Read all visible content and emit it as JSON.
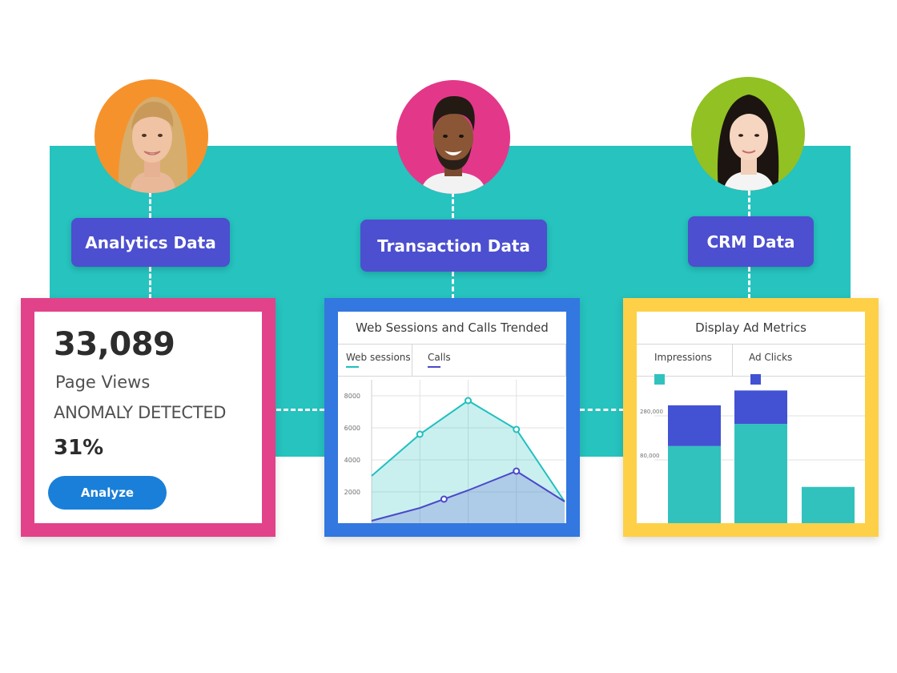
{
  "categories": {
    "analytics": "Analytics Data",
    "transaction": "Transaction Data",
    "crm": "CRM Data"
  },
  "analytics_card": {
    "value": "33,089",
    "metric": "Page Views",
    "alert": "ANOMALY DETECTED",
    "change": "31%",
    "button": "Analyze"
  },
  "colors": {
    "teal": "#26c3bf",
    "indigo": "#4c4fcf",
    "pink": "#e2428a",
    "blue": "#3377e0",
    "yellow": "#fdd047",
    "orange": "#f6922b",
    "magenta": "#e3388a",
    "green": "#92c123"
  },
  "avatars": [
    {
      "name": "avatar-woman-blonde",
      "bg": "#f6922b"
    },
    {
      "name": "avatar-man",
      "bg": "#e3388a"
    },
    {
      "name": "avatar-woman-dark-hair",
      "bg": "#92c123"
    }
  ],
  "chart_data": [
    {
      "type": "area",
      "title": "Web Sessions and Calls Trended",
      "y_ticks": [
        "8000",
        "6000",
        "4000",
        "2000"
      ],
      "ylim": [
        0,
        9000
      ],
      "x": [
        0,
        1,
        2,
        3,
        4
      ],
      "series": [
        {
          "name": "Web sessions",
          "color": "#1fbfbf",
          "values": [
            3000,
            5600,
            7700,
            5900,
            1400
          ],
          "markers": [
            1,
            2,
            3
          ]
        },
        {
          "name": "Calls",
          "color": "#4b48c9",
          "values": [
            200,
            1000,
            2100,
            3300,
            1400
          ],
          "markers": [
            1.5,
            3
          ]
        }
      ]
    },
    {
      "type": "bar",
      "title": "Display Ad Metrics",
      "y_ticks": [
        "280,000",
        "80,000"
      ],
      "categories": [
        "1",
        "2",
        "3"
      ],
      "stacked": true,
      "series": [
        {
          "name": "Impressions",
          "color": "#32c2bd",
          "values": [
            210000,
            270000,
            100000
          ]
        },
        {
          "name": "Ad Clicks",
          "color": "#4252d3",
          "values": [
            110000,
            90000,
            0
          ]
        }
      ]
    }
  ]
}
